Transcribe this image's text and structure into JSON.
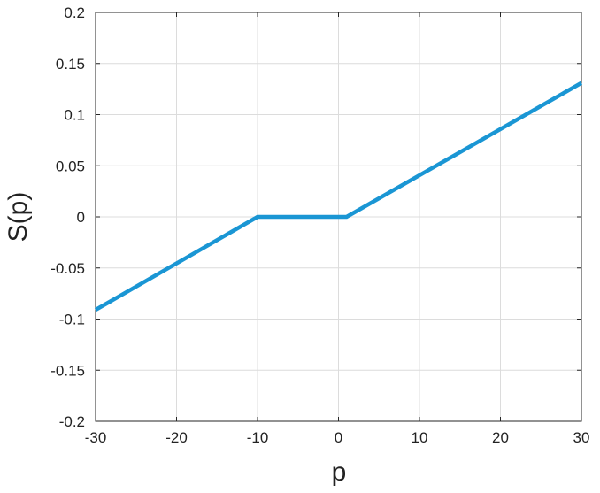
{
  "chart_data": {
    "type": "line",
    "xlabel": "p",
    "ylabel": "S(p)",
    "xlim": [
      -30,
      30
    ],
    "ylim": [
      -0.2,
      0.2
    ],
    "x_ticks": [
      -30,
      -20,
      -10,
      0,
      10,
      20,
      30
    ],
    "y_ticks": [
      -0.2,
      -0.15,
      -0.1,
      -0.05,
      0,
      0.05,
      0.1,
      0.15,
      0.2
    ],
    "x_tick_labels": [
      "-30",
      "-20",
      "-10",
      "0",
      "10",
      "20",
      "30"
    ],
    "y_tick_labels": [
      "-0.2",
      "-0.15",
      "-0.1",
      "-0.05",
      "0",
      "0.05",
      "0.1",
      "0.15",
      "0.2"
    ],
    "grid": true,
    "series": [
      {
        "x": [
          -30,
          -10,
          1,
          30
        ],
        "y": [
          -0.091,
          0,
          0,
          0.131
        ],
        "color": "#1a96d4"
      }
    ]
  }
}
